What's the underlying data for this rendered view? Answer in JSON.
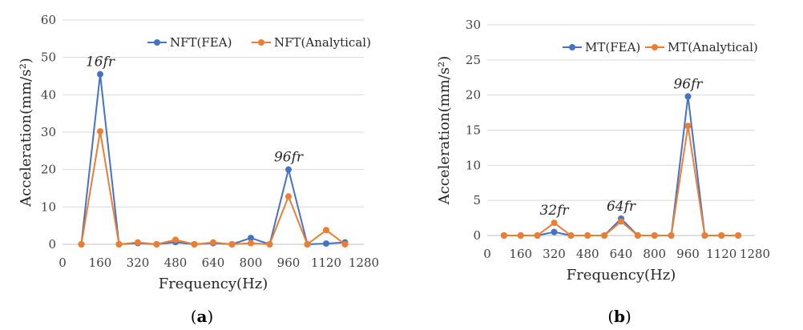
{
  "chart_data": [
    {
      "type": "line",
      "panel_label": "a",
      "xlabel": "Frequency(Hz)",
      "ylabel": "Acceleration(mm/s²)",
      "xlim": [
        0,
        1280
      ],
      "ylim": [
        0,
        60
      ],
      "xticks": [
        0,
        160,
        320,
        480,
        640,
        800,
        960,
        1120,
        1280
      ],
      "yticks": [
        0,
        10,
        20,
        30,
        40,
        50,
        60
      ],
      "grid": "horizontal",
      "legend_position": "top-right",
      "series": [
        {
          "name": "NFT(FEA)",
          "color": "#4472c4",
          "x": [
            80,
            160,
            240,
            320,
            400,
            480,
            560,
            640,
            720,
            800,
            880,
            960,
            1040,
            1120,
            1200
          ],
          "y": [
            0,
            45.5,
            0,
            0.3,
            0,
            0.6,
            0,
            0.3,
            0,
            1.7,
            0,
            20,
            0,
            0.2,
            0.5
          ]
        },
        {
          "name": "NFT(Analytical)",
          "color": "#ed7d31",
          "x": [
            80,
            160,
            240,
            320,
            400,
            480,
            560,
            640,
            720,
            800,
            880,
            960,
            1040,
            1120,
            1200
          ],
          "y": [
            0,
            30.2,
            0,
            0.5,
            0,
            1.2,
            0,
            0.5,
            0,
            0.3,
            0,
            12.8,
            0,
            3.8,
            0
          ]
        }
      ],
      "annotations": [
        {
          "text": "16fr",
          "x": 160,
          "y": 45.5
        },
        {
          "text": "96fr",
          "x": 960,
          "y": 20
        }
      ]
    },
    {
      "type": "line",
      "panel_label": "b",
      "xlabel": "Frequency(Hz)",
      "ylabel": "Acceleration(mm/s²)",
      "xlim": [
        0,
        1280
      ],
      "ylim": [
        0,
        30
      ],
      "xticks": [
        0,
        160,
        320,
        480,
        640,
        800,
        960,
        1120,
        1280
      ],
      "yticks": [
        0,
        5,
        10,
        15,
        20,
        25,
        30
      ],
      "grid": "horizontal",
      "legend_position": "top-right",
      "series": [
        {
          "name": "MT(FEA)",
          "color": "#4472c4",
          "x": [
            80,
            160,
            240,
            320,
            400,
            480,
            560,
            640,
            720,
            800,
            880,
            960,
            1040,
            1120,
            1200
          ],
          "y": [
            0,
            0,
            0,
            0.5,
            0,
            0,
            0,
            2.4,
            0,
            0,
            0,
            19.8,
            0,
            0,
            0
          ]
        },
        {
          "name": "MT(Analytical)",
          "color": "#ed7d31",
          "x": [
            80,
            160,
            240,
            320,
            400,
            480,
            560,
            640,
            720,
            800,
            880,
            960,
            1040,
            1120,
            1200
          ],
          "y": [
            0,
            0,
            0,
            1.8,
            0,
            0,
            0,
            2,
            0,
            0,
            0,
            15.6,
            0,
            0,
            0
          ]
        }
      ],
      "annotations": [
        {
          "text": "32fr",
          "x": 320,
          "y": 1.8
        },
        {
          "text": "64fr",
          "x": 640,
          "y": 2.4
        },
        {
          "text": "96fr",
          "x": 960,
          "y": 19.8
        }
      ]
    }
  ]
}
